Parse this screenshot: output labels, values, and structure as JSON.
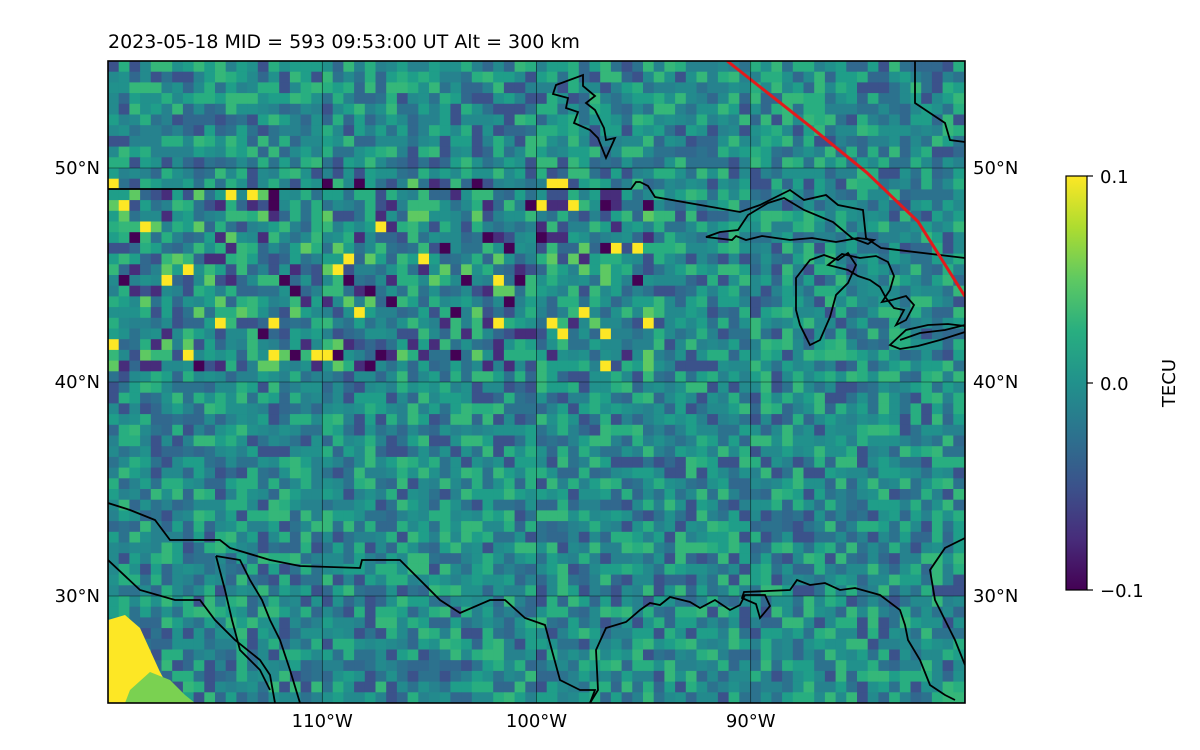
{
  "title": "2023-05-18  MID = 593    09:53:00  UT  Alt = 300 km",
  "map": {
    "lon_range": [
      -120,
      -80
    ],
    "lat_range": [
      25,
      55
    ],
    "lon_ticks": [
      {
        "value": -110,
        "label": "110°W"
      },
      {
        "value": -100,
        "label": "100°W"
      },
      {
        "value": -90,
        "label": "90°W"
      }
    ],
    "lat_ticks": [
      {
        "value": 50,
        "label": "50°N"
      },
      {
        "value": 40,
        "label": "40°N"
      },
      {
        "value": 30,
        "label": "30°N"
      }
    ],
    "gridlines": true,
    "coastline_color": "#000000",
    "terminator_color": "#e31a1c",
    "terminator_line": [
      [
        -91.1,
        55
      ],
      [
        -87.3,
        52
      ],
      [
        -84.6,
        49.8
      ],
      [
        -82.2,
        47.5
      ],
      [
        -80,
        44
      ]
    ],
    "field_colors": {
      "background": "#2a8a8c",
      "low": "#440154",
      "mid": "#21918c",
      "high": "#fde725"
    }
  },
  "colorbar": {
    "label": "TECU",
    "min": -0.1,
    "max": 0.1,
    "ticks": [
      {
        "value": 0.1,
        "label": "0.1"
      },
      {
        "value": 0.0,
        "label": "0.0"
      },
      {
        "value": -0.1,
        "label": "−0.1"
      }
    ],
    "colormap": "viridis"
  }
}
